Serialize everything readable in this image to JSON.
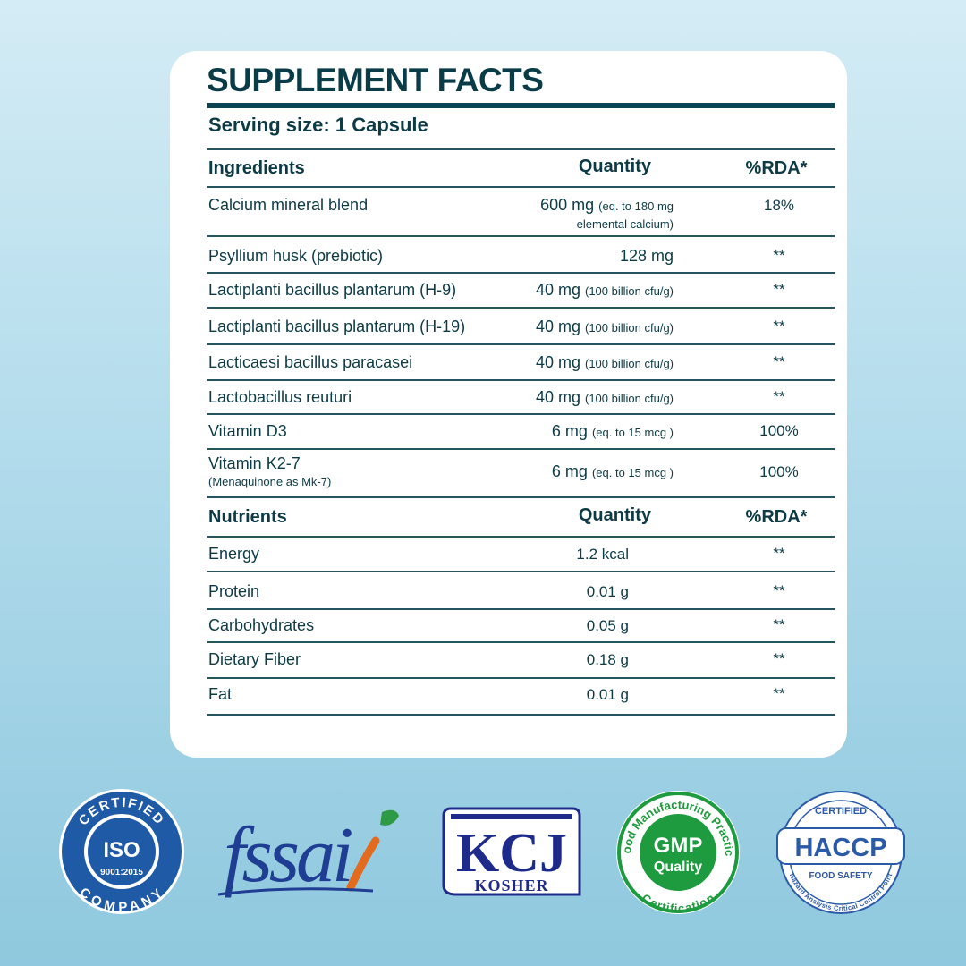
{
  "title": "SUPPLEMENT FACTS",
  "serving": {
    "label": "Serving size:",
    "value": "1 Capsule"
  },
  "ingredients": {
    "header": {
      "name": "Ingredients",
      "qty": "Quantity",
      "rda": "%RDA*"
    },
    "rows": [
      {
        "name": "Calcium mineral blend",
        "sub": "",
        "qty": "600 mg",
        "note": "(eq. to 180 mg",
        "note2": "elemental calcium)",
        "rda": "18%"
      },
      {
        "name": "Psyllium husk (prebiotic)",
        "sub": "",
        "qty": "128 mg",
        "note": "",
        "rda": "**"
      },
      {
        "name": "Lactiplanti bacillus plantarum (H-9)",
        "sub": "",
        "qty": "40 mg",
        "note": "(100 billion cfu/g)",
        "rda": "**"
      },
      {
        "name": "Lactiplanti bacillus plantarum (H-19)",
        "sub": "",
        "qty": "40 mg",
        "note": "(100 billion cfu/g)",
        "rda": "**"
      },
      {
        "name": "Lacticaesi bacillus paracasei",
        "sub": "",
        "qty": "40 mg",
        "note": "(100 billion cfu/g)",
        "rda": "**"
      },
      {
        "name": "Lactobacillus reuturi",
        "sub": "",
        "qty": "40 mg",
        "note": "(100 billion cfu/g)",
        "rda": "**"
      },
      {
        "name": "Vitamin D3",
        "sub": "",
        "qty": "6 mg",
        "note": "(eq. to 15 mcg )",
        "rda": "100%"
      },
      {
        "name": "Vitamin K2-7",
        "sub": "(Menaquinone as Mk-7)",
        "qty": "6 mg",
        "note": "(eq. to 15 mcg )",
        "rda": "100%"
      }
    ]
  },
  "nutrients": {
    "header": {
      "name": "Nutrients",
      "qty": "Quantity",
      "rda": "%RDA*"
    },
    "rows": [
      {
        "name": "Energy",
        "qty": "1.2 kcal",
        "rda": "**"
      },
      {
        "name": "Protein",
        "qty": "0.01 g",
        "rda": "**"
      },
      {
        "name": "Carbohydrates",
        "qty": "0.05 g",
        "rda": "**"
      },
      {
        "name": "Dietary Fiber",
        "qty": "0.18 g",
        "rda": "**"
      },
      {
        "name": "Fat",
        "qty": "0.01 g",
        "rda": "**"
      }
    ]
  },
  "badges": {
    "iso": {
      "top": "CERTIFIED",
      "main": "ISO",
      "num": "9001:2015",
      "bottom": "COMPANY"
    },
    "fssai": {
      "text": "fssai"
    },
    "kosher": {
      "mark": "KCJ",
      "text": "KOSHER"
    },
    "gmp": {
      "ring_top": "Good Manufacturing Practice",
      "ring_bottom": "Certification",
      "main": "GMP",
      "sub": "Quality"
    },
    "haccp": {
      "top": "CERTIFIED",
      "main": "HACCP",
      "sub": "FOOD SAFETY",
      "ring": "Hazard Analysis Critical Control Point"
    }
  },
  "colors": {
    "accent": "#0d4350",
    "iso_blue": "#1f5aa6",
    "gmp_green": "#1e9b3e",
    "haccp_blue": "#2a5aa8",
    "fssai_orange": "#e26b1f"
  }
}
